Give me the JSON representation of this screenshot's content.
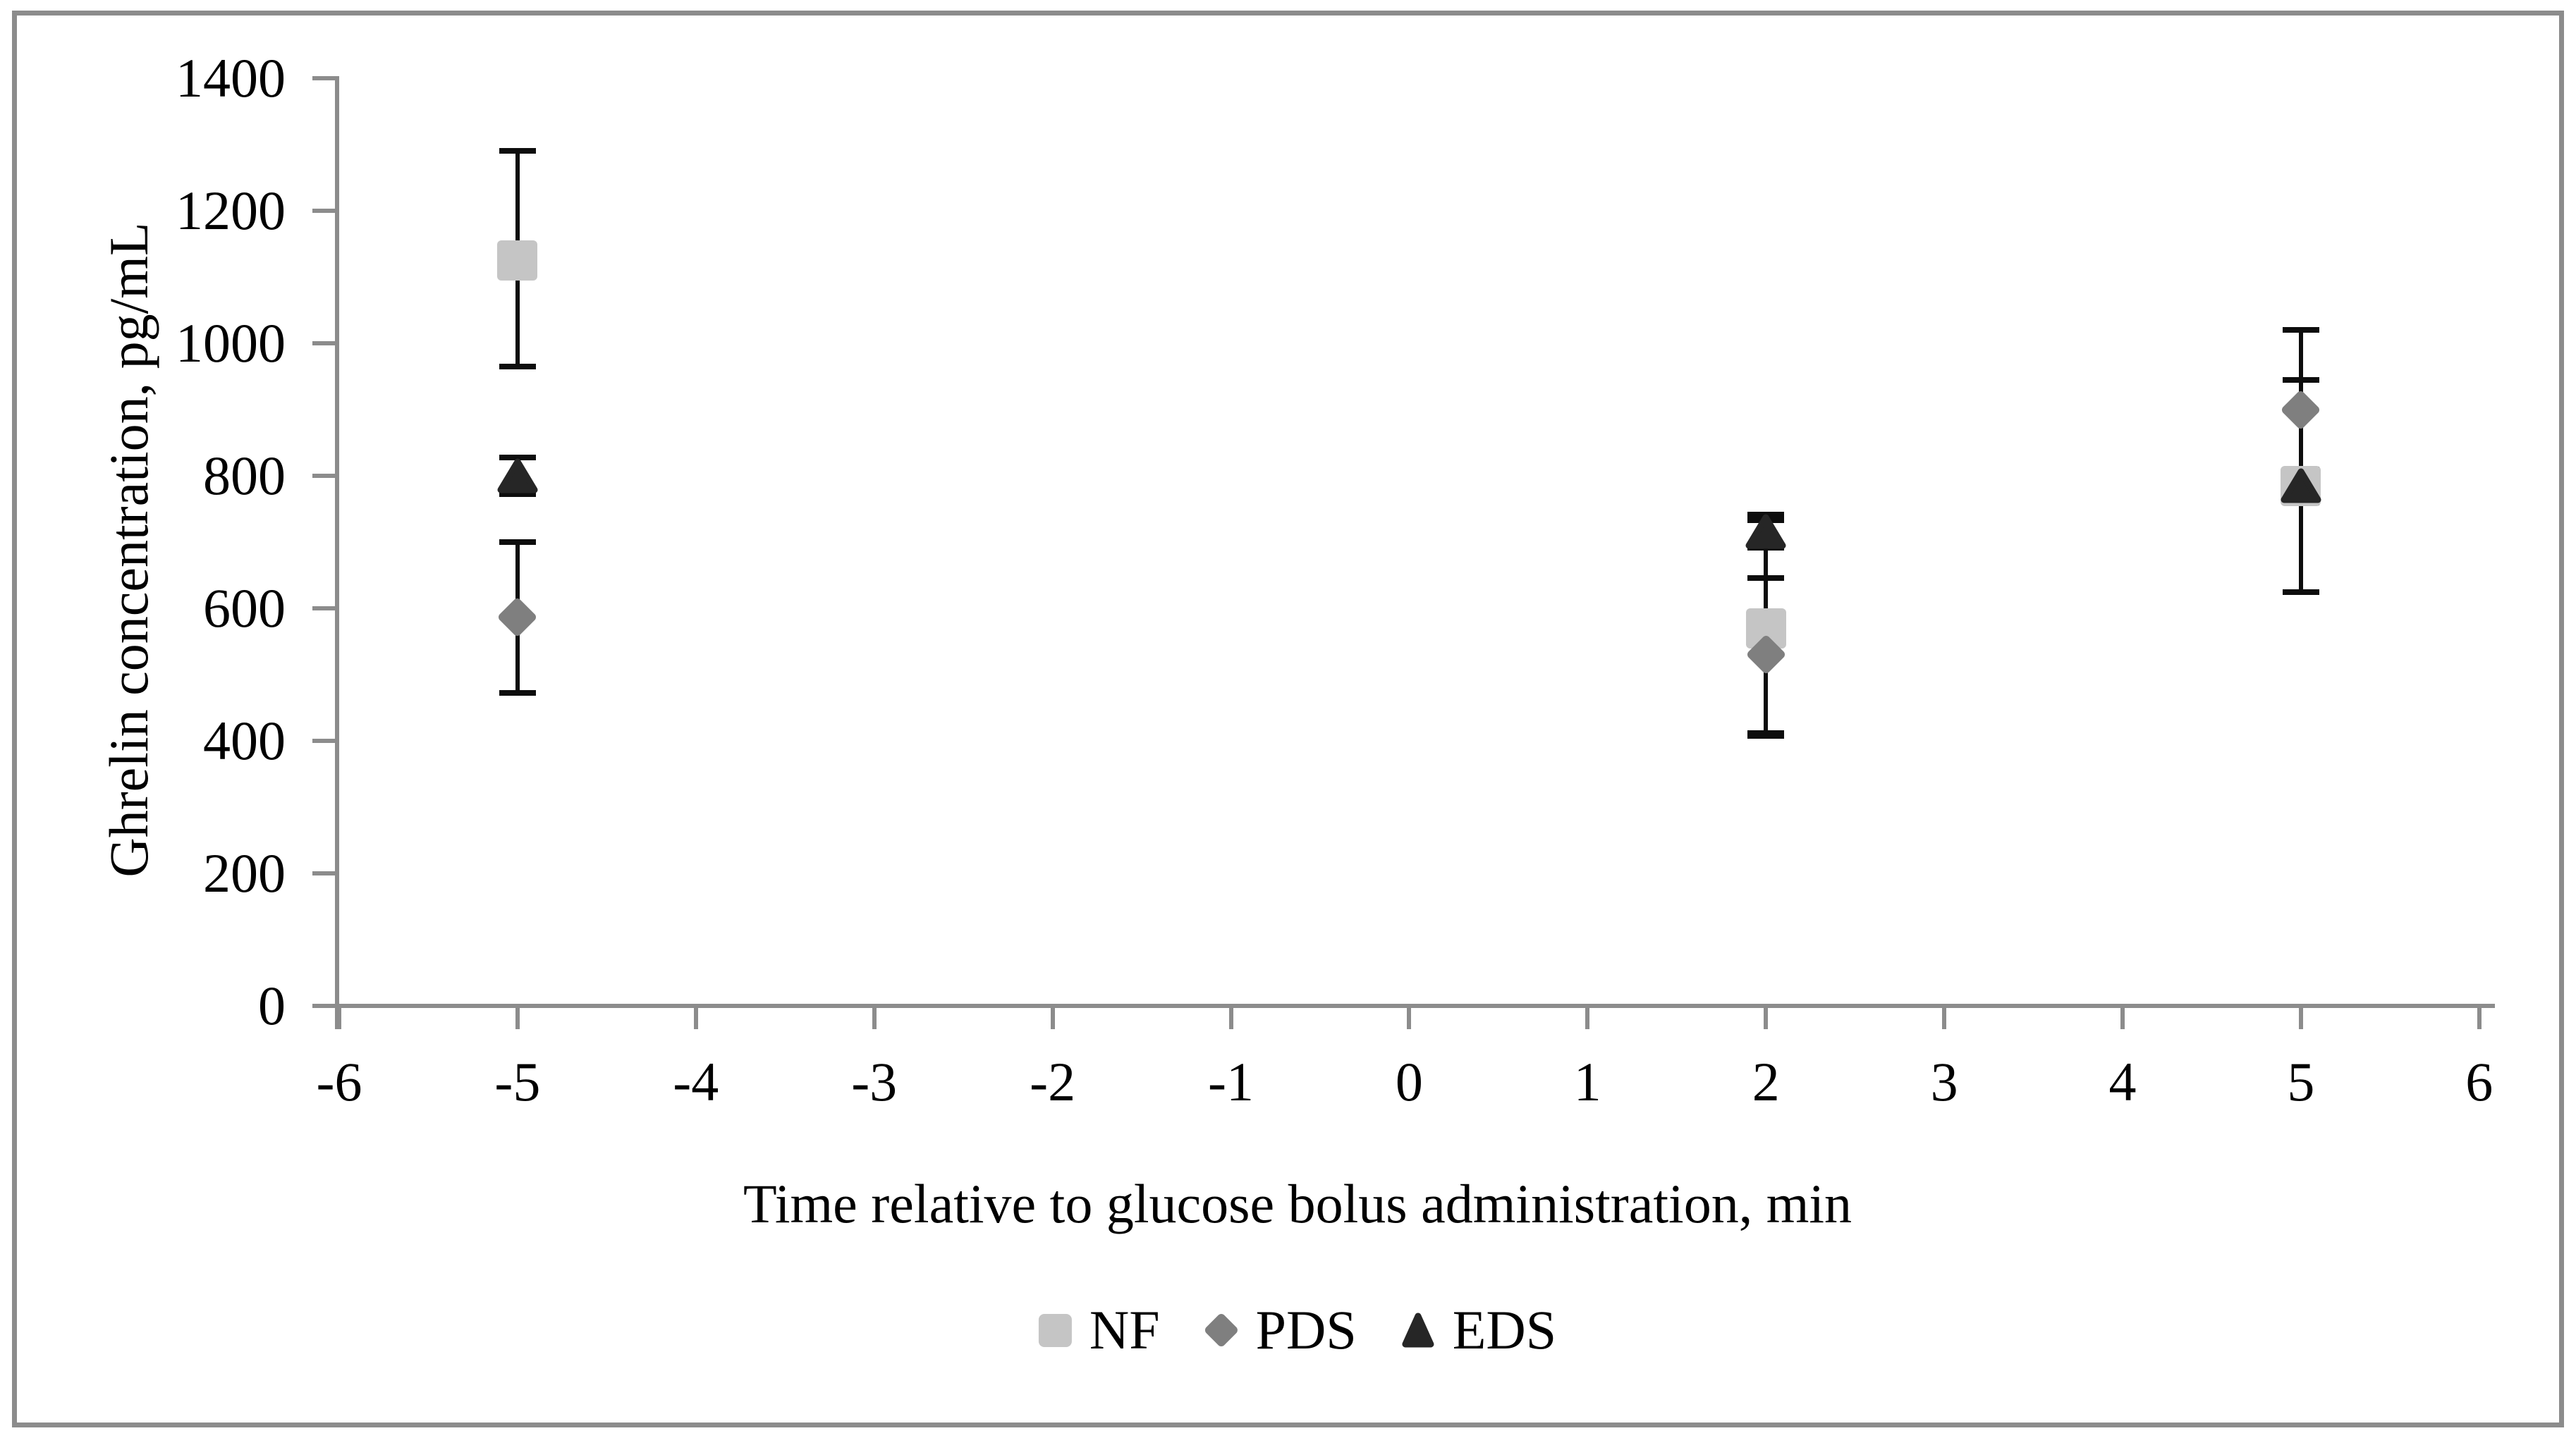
{
  "figure": {
    "background": "#ffffff",
    "border_color": "#8c8c8c"
  },
  "chart_data": {
    "type": "scatter",
    "title": "",
    "xlabel": "Time relative to glucose bolus administration, min",
    "ylabel": "Ghrelin concentration, pg/mL",
    "xlim": [
      -6,
      6
    ],
    "ylim": [
      0,
      1400
    ],
    "x_ticks": [
      -6,
      -5,
      -4,
      -3,
      -2,
      -1,
      0,
      1,
      2,
      3,
      4,
      5,
      6
    ],
    "y_ticks": [
      0,
      200,
      400,
      600,
      800,
      1000,
      1200,
      1400
    ],
    "grid": false,
    "legend_position": "bottom-center",
    "axis_color": "#8c8c8c",
    "error_bar_color": "#0d0d0d",
    "series": [
      {
        "name": "NF",
        "marker": "square",
        "color": "#c5c5c5",
        "points": [
          {
            "x": -5,
            "y": 1125,
            "err_up": 165,
            "err_down": 160
          },
          {
            "x": 2,
            "y": 570,
            "err_up": 163,
            "err_down": 163
          },
          {
            "x": 5,
            "y": 785,
            "err_up": 160,
            "err_down": 160
          }
        ]
      },
      {
        "name": "PDS",
        "marker": "diamond",
        "color": "#7f7f7f",
        "points": [
          {
            "x": -5,
            "y": 587,
            "err_up": 113,
            "err_down": 115
          },
          {
            "x": 2,
            "y": 530,
            "err_up": 116,
            "err_down": 118
          },
          {
            "x": 5,
            "y": 900,
            "err_up": 120,
            "err_down": 120
          }
        ]
      },
      {
        "name": "EDS",
        "marker": "triangle",
        "color": "#262626",
        "points": [
          {
            "x": -5,
            "y": 800,
            "err_up": 28,
            "err_down": 28
          },
          {
            "x": 2,
            "y": 716,
            "err_up": 25,
            "err_down": 25
          },
          {
            "x": 5,
            "y": 785,
            "err_up": 25,
            "err_down": 25
          }
        ]
      }
    ]
  }
}
